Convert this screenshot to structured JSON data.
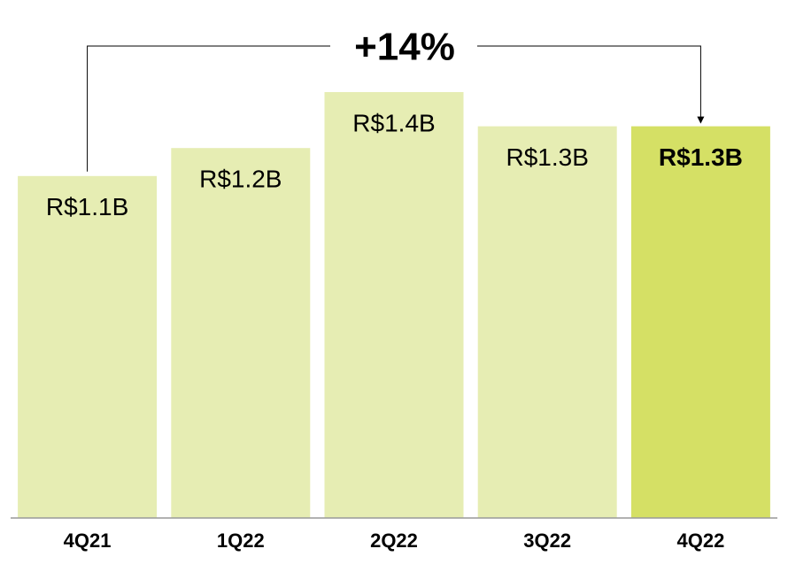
{
  "chart_data": {
    "type": "bar",
    "categories": [
      "4Q21",
      "1Q22",
      "2Q22",
      "3Q22",
      "4Q22"
    ],
    "values": [
      1.1,
      1.19,
      1.37,
      1.26,
      1.26
    ],
    "value_labels": [
      "R$1.1B",
      "R$1.2B",
      "R$1.4B",
      "R$1.3B",
      "R$1.3B"
    ],
    "colors": [
      "#e6edb3",
      "#e6edb3",
      "#e6edb3",
      "#e6edb3",
      "#d5e065"
    ],
    "annotation": "+14%"
  }
}
